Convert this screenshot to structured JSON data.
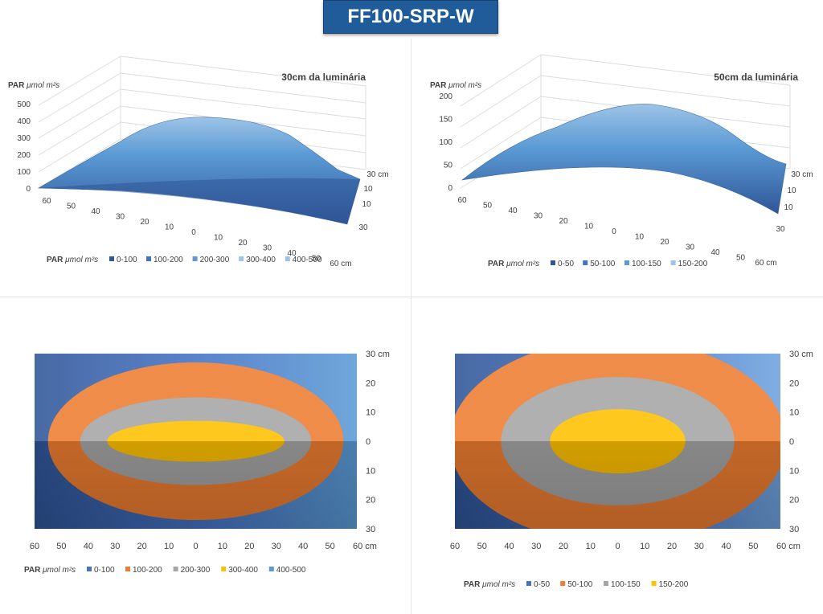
{
  "page_title": "FF100-SRP-W",
  "colors": {
    "title_bg": "#1f5c99",
    "blue_dark": "#2f5597",
    "blue": "#4472c4",
    "blue_light": "#5b9bd5",
    "blue_lighter": "#9dc3e6",
    "orange": "#ed7d31",
    "gray": "#a5a5a5",
    "yellow": "#ffc000"
  },
  "chart_data": [
    {
      "type": "surface3d",
      "title": "30cm da luminária",
      "zlabel_main": "PAR",
      "zlabel_unit": "μmol m²s",
      "zlim": [
        0,
        500
      ],
      "z_ticks": [
        "0",
        "100",
        "200",
        "300",
        "400",
        "500"
      ],
      "x_ticks": [
        "60",
        "50",
        "40",
        "30",
        "20",
        "10",
        "0",
        "10",
        "20",
        "30",
        "40",
        "50",
        "60 cm"
      ],
      "y_ticks": [
        "30 cm",
        "10",
        "10",
        "30"
      ],
      "legend_label_main": "PAR",
      "legend_label_unit": "μmol m²s",
      "legend": [
        "0-100",
        "100-200",
        "200-300",
        "300-400",
        "400-500"
      ],
      "peak_value": 470
    },
    {
      "type": "surface3d",
      "title": "50cm da luminária",
      "zlabel_main": "PAR",
      "zlabel_unit": "μmol m²s",
      "zlim": [
        0,
        200
      ],
      "z_ticks": [
        "0",
        "50",
        "100",
        "150",
        "200"
      ],
      "x_ticks": [
        "60",
        "50",
        "40",
        "30",
        "20",
        "10",
        "0",
        "10",
        "20",
        "30",
        "40",
        "50",
        "60 cm"
      ],
      "y_ticks": [
        "30 cm",
        "10",
        "10",
        "30"
      ],
      "legend_label_main": "PAR",
      "legend_label_unit": "μmol m²s",
      "legend": [
        "0-50",
        "50-100",
        "100-150",
        "150-200"
      ],
      "peak_value": 185
    },
    {
      "type": "contour",
      "x_ticks": [
        "60",
        "50",
        "40",
        "30",
        "20",
        "10",
        "0",
        "10",
        "20",
        "30",
        "40",
        "50",
        "60 cm"
      ],
      "y_ticks": [
        "30 cm",
        "20",
        "10",
        "0",
        "10",
        "20",
        "30"
      ],
      "legend_label_main": "PAR",
      "legend_label_unit": "μmol m²s",
      "legend": [
        "0-100",
        "100-200",
        "200-300",
        "300-400",
        "400-500"
      ],
      "levels": [
        {
          "band": "100-200",
          "x_halfwidth": 55,
          "y_halfwidth": 27
        },
        {
          "band": "200-300",
          "x_halfwidth": 43,
          "y_halfwidth": 15
        },
        {
          "band": "300-400",
          "x_halfwidth": 33,
          "y_halfwidth": 7
        }
      ]
    },
    {
      "type": "contour",
      "x_ticks": [
        "60",
        "50",
        "40",
        "30",
        "20",
        "10",
        "0",
        "10",
        "20",
        "30",
        "40",
        "50",
        "60 cm"
      ],
      "y_ticks": [
        "30 cm",
        "20",
        "10",
        "0",
        "10",
        "20",
        "30"
      ],
      "legend_label_main": "PAR",
      "legend_label_unit": "μmol m²s",
      "legend": [
        "0-50",
        "50-100",
        "100-150",
        "150-200"
      ],
      "levels": [
        {
          "band": "50-100",
          "x_halfwidth": 62,
          "y_halfwidth": 35
        },
        {
          "band": "100-150",
          "x_halfwidth": 43,
          "y_halfwidth": 22
        },
        {
          "band": "150-200",
          "x_halfwidth": 25,
          "y_halfwidth": 11
        }
      ]
    }
  ]
}
